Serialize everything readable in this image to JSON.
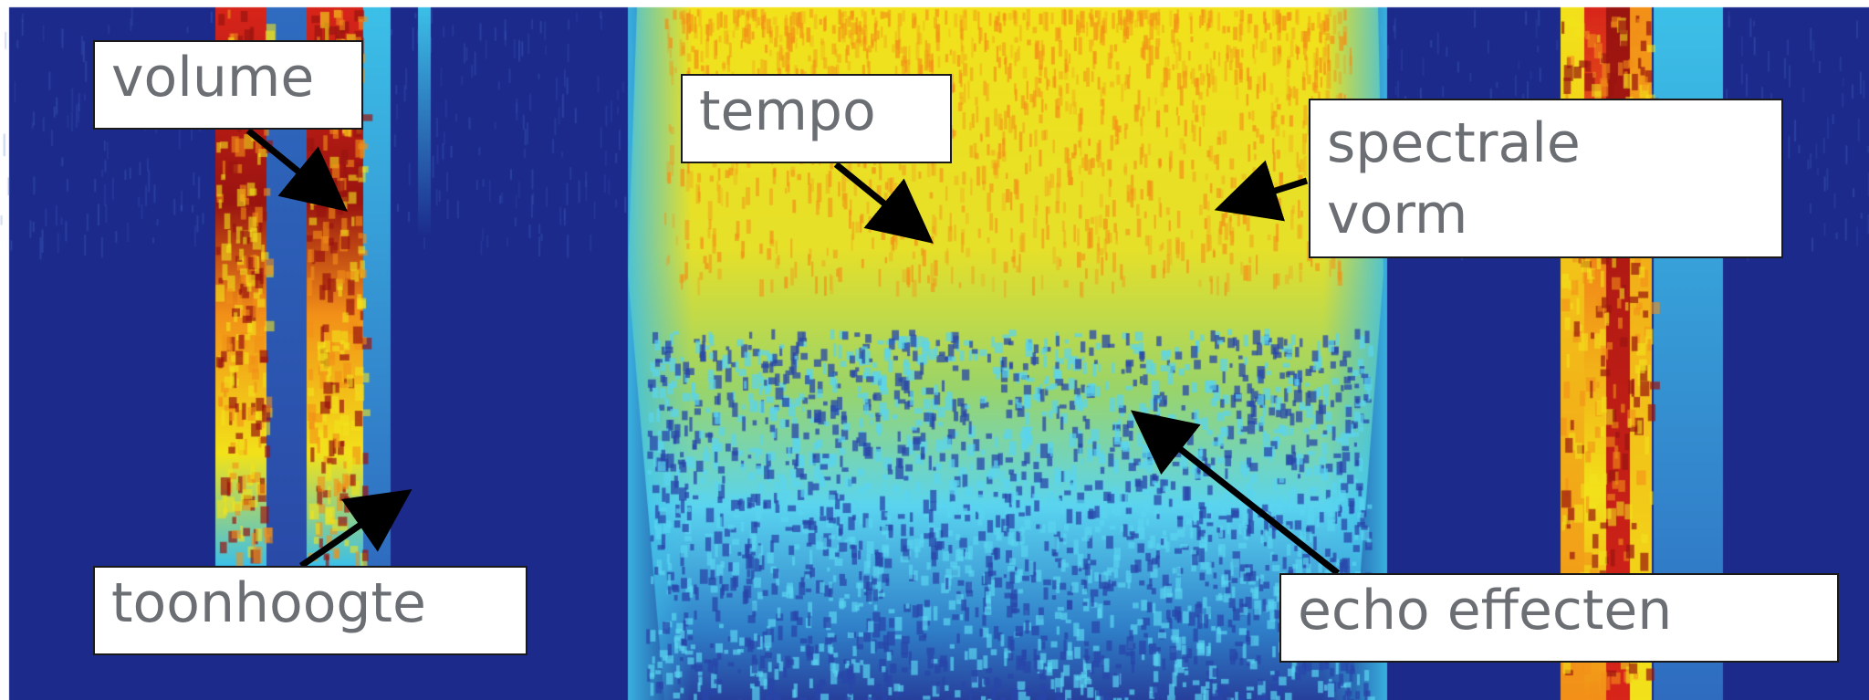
{
  "labels": {
    "volume": "volume",
    "tempo": "tempo",
    "spectral_line1": "spectrale",
    "spectral_line2": "vorm",
    "pitch": "toonhoogte",
    "echo": "echo effecten"
  },
  "colors": {
    "background_blue": "#1c2a8c",
    "light_blue": "#3cc0e8",
    "cyan": "#5ad4f0",
    "yellow": "#f2e21a",
    "orange": "#f29018",
    "red": "#d8251a",
    "dark_red": "#9a1410",
    "arrow": "#000000",
    "label_text": "#6b6e72"
  }
}
